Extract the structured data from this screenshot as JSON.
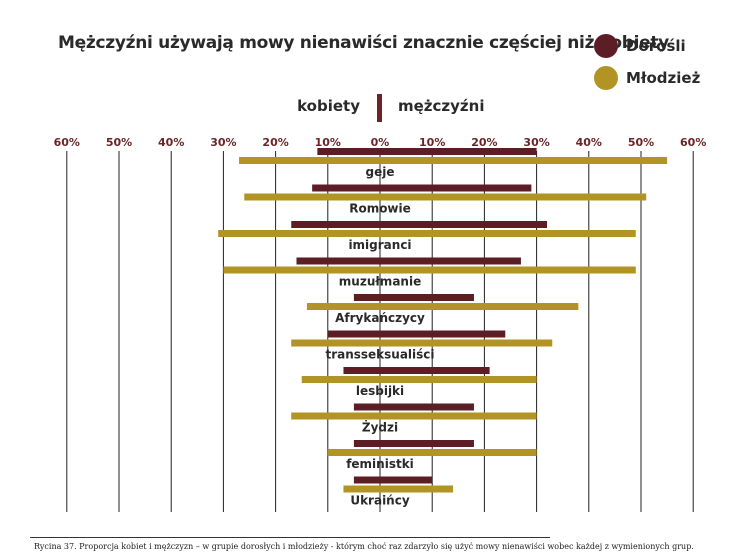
{
  "chart_data": {
    "type": "bar",
    "orientation": "horizontal-diverging",
    "title": "Mężczyźni używają mowy nienawiści znacznie częściej niż kobiety",
    "split_left_label": "kobiety",
    "split_right_label": "mężczyźni",
    "tick_labels": [
      "60%",
      "50%",
      "40%",
      "30%",
      "20%",
      "10%",
      "0%",
      "10%",
      "20%",
      "30%",
      "40%",
      "50%",
      "60%"
    ],
    "xlim": [
      -60,
      60
    ],
    "grid": true,
    "legend_position": "top-right",
    "categories": [
      "geje",
      "Romowie",
      "imigranci",
      "muzułmanie",
      "Afrykańczycy",
      "transseksualiści",
      "lesbijki",
      "Żydzi",
      "feministki",
      "Ukraińcy"
    ],
    "series": [
      {
        "name": "Dorośli",
        "color": "#5c1d24",
        "kobiety": [
          12,
          13,
          17,
          16,
          5,
          10,
          7,
          5,
          5,
          5
        ],
        "mezczyzni": [
          30,
          29,
          32,
          27,
          18,
          24,
          21,
          18,
          18,
          10
        ]
      },
      {
        "name": "Młodzież",
        "color": "#b29424",
        "kobiety": [
          27,
          26,
          31,
          30,
          14,
          17,
          15,
          17,
          10,
          7
        ],
        "mezczyzni": [
          55,
          51,
          49,
          49,
          38,
          33,
          30,
          30,
          30,
          14
        ]
      }
    ]
  },
  "caption": "Rycina 37. Proporcja kobiet i mężczyzn – w grupie dorosłych i młodzieży - którym choć raz zdarzyło się użyć mowy nienawiści wobec każdej z wymienionych grup."
}
